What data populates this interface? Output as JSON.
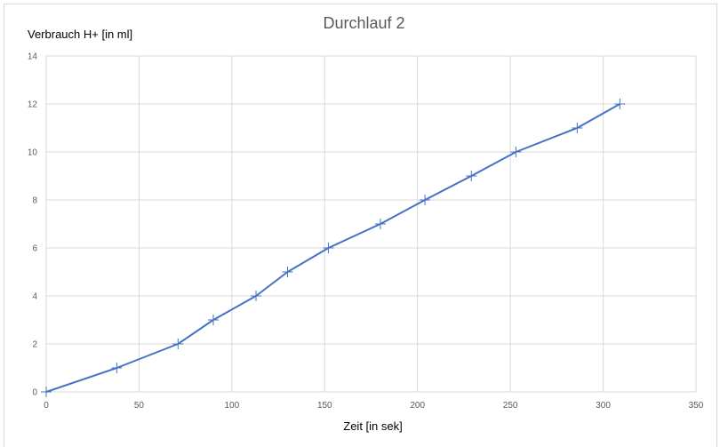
{
  "chart_data": {
    "type": "line",
    "title": "Durchlauf 2",
    "xlabel": "Zeit [in sek]",
    "ylabel": "Verbrauch H+ [in ml]",
    "xlim": [
      0,
      350
    ],
    "ylim": [
      0,
      14
    ],
    "xticks": [
      0,
      50,
      100,
      150,
      200,
      250,
      300,
      350
    ],
    "yticks": [
      0,
      2,
      4,
      6,
      8,
      10,
      12,
      14
    ],
    "grid": true,
    "legend": "none",
    "series": [
      {
        "color": "#4472c4",
        "marker": "plus",
        "x": [
          0,
          38,
          71,
          90,
          113,
          130,
          152,
          180,
          204,
          229,
          253,
          286,
          309
        ],
        "y": [
          0,
          1,
          2,
          3,
          4,
          5,
          6,
          7,
          8,
          9,
          10,
          11,
          12
        ]
      }
    ]
  }
}
